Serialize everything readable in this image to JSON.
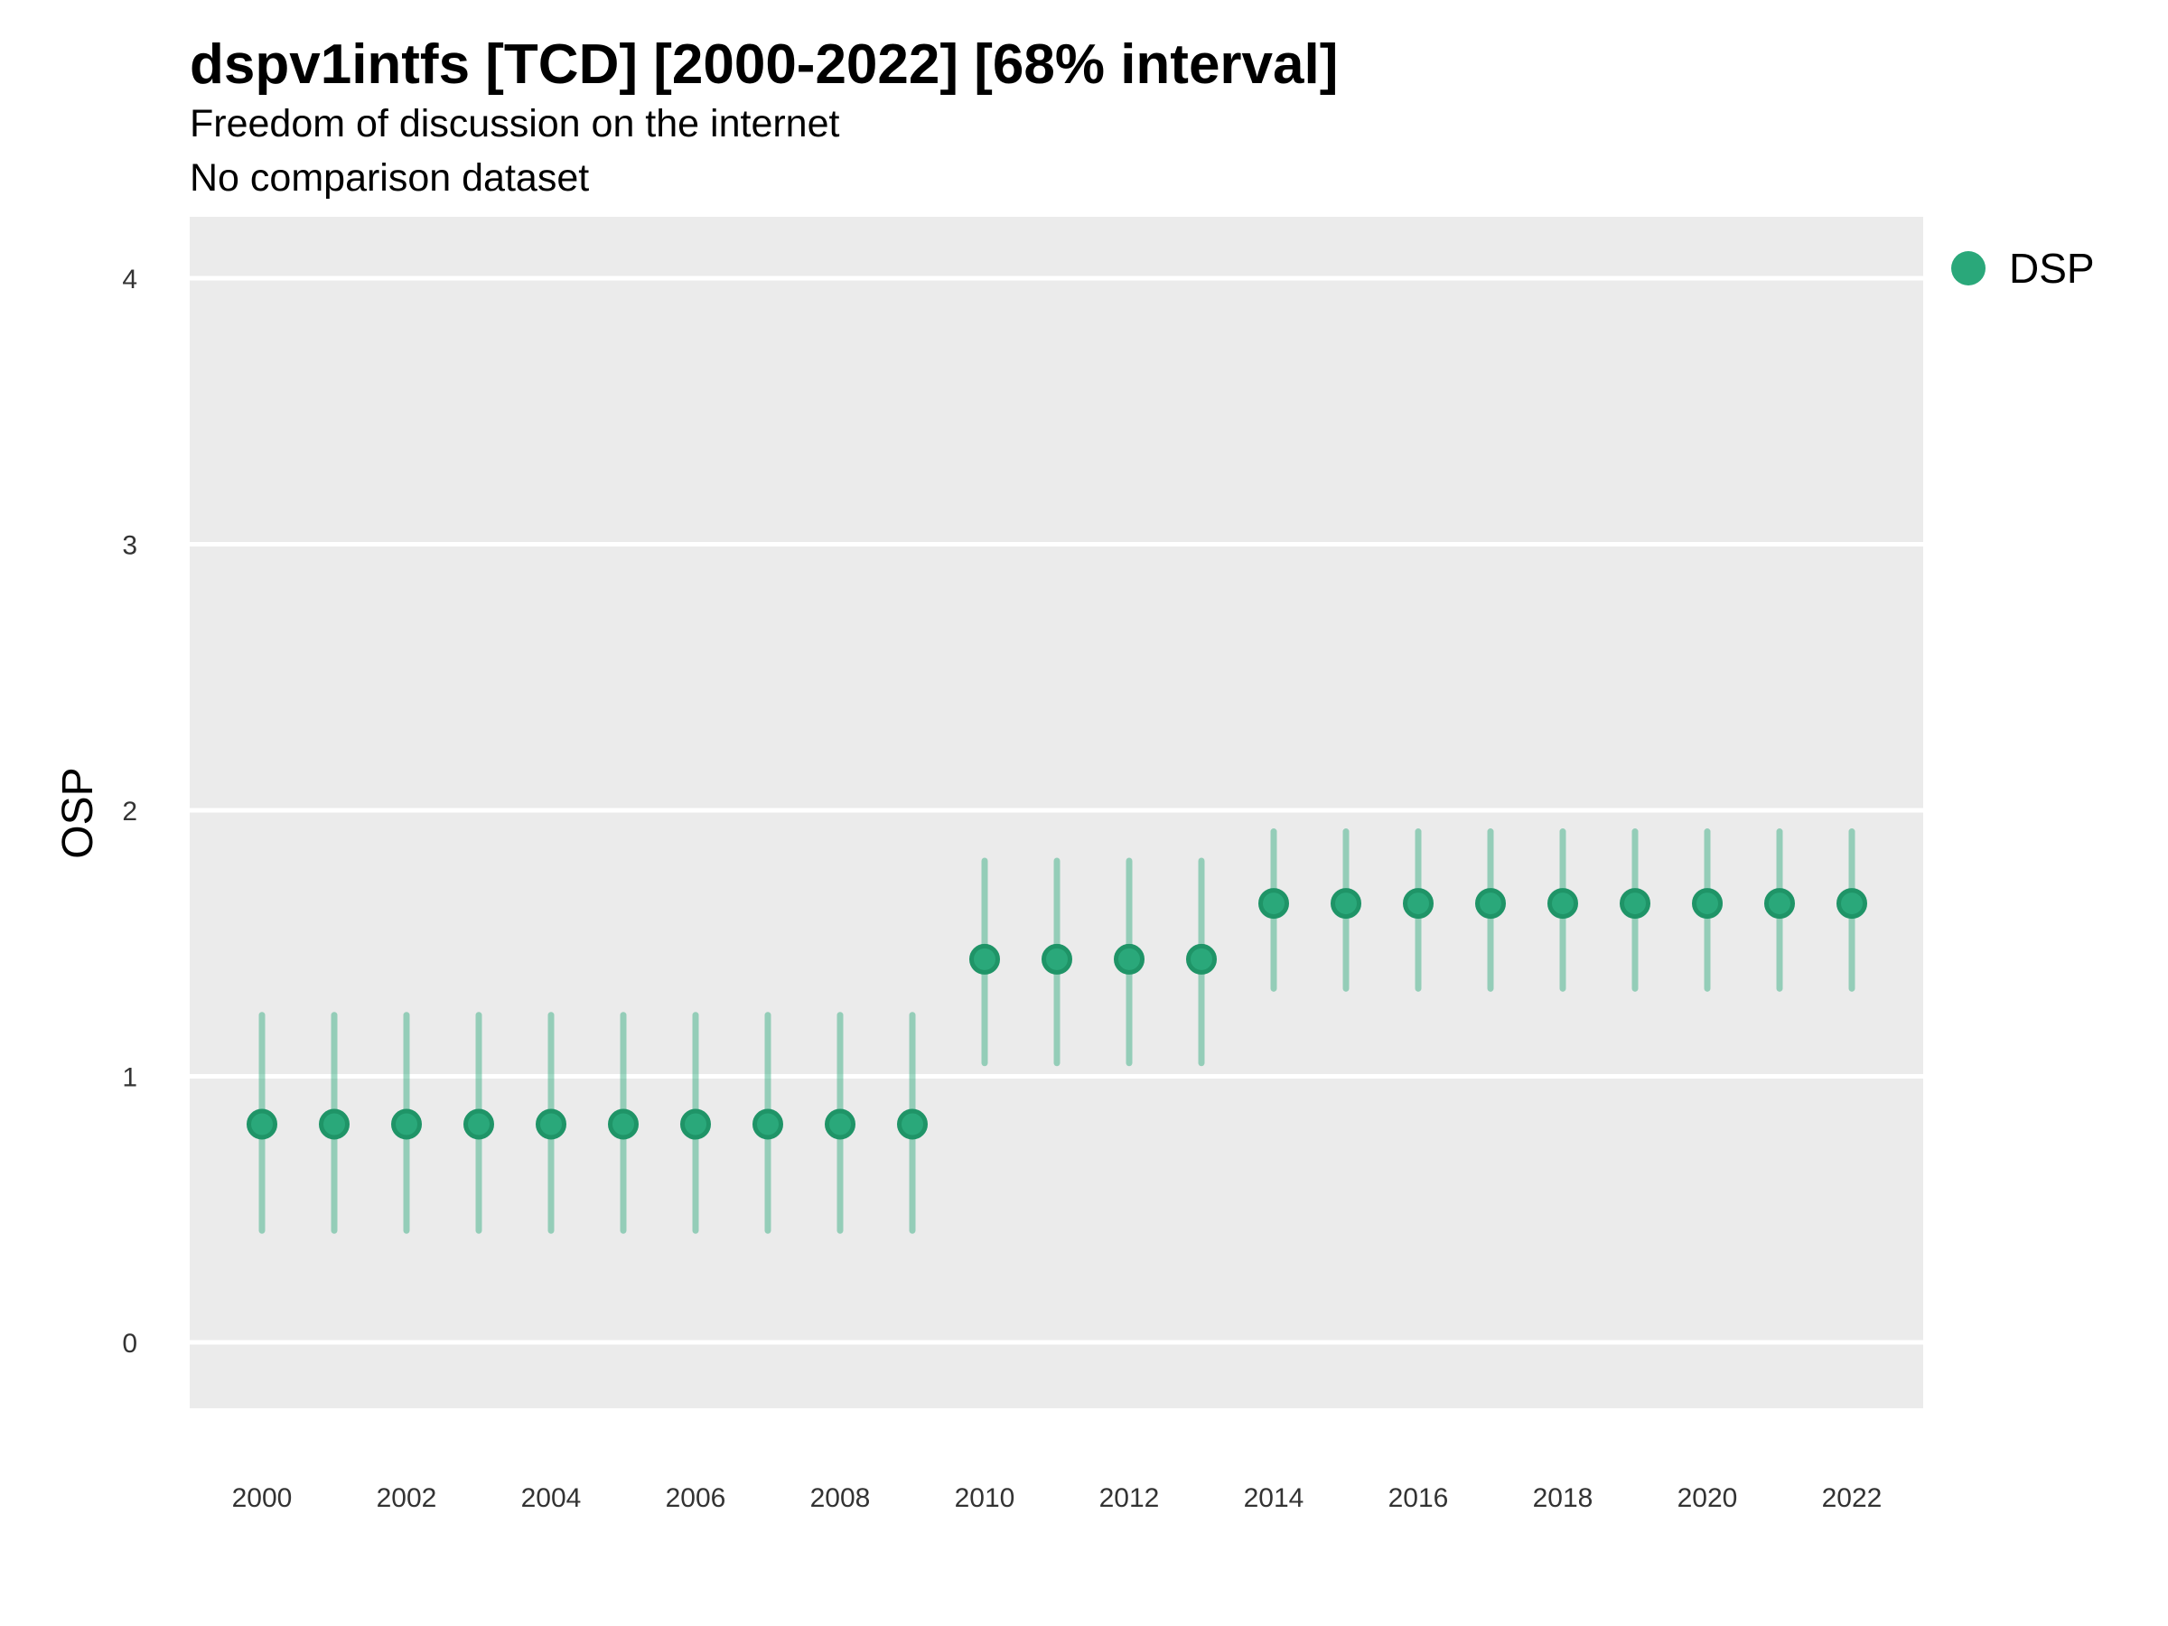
{
  "chart_data": {
    "type": "pointrange",
    "title": "dspv1intfs [TCD] [2000-2022] [68% interval]",
    "subtitle": [
      "Freedom of discussion on the internet",
      "No comparison dataset"
    ],
    "xlabel": "",
    "ylabel": "OSP",
    "ylim": [
      -0.25,
      4.25
    ],
    "yticks": [
      0,
      1,
      2,
      3,
      4
    ],
    "xticks": [
      2000,
      2002,
      2004,
      2006,
      2008,
      2010,
      2012,
      2014,
      2016,
      2018,
      2020,
      2022
    ],
    "grid": "horizontal-major-only",
    "panel_background": "#ebebeb",
    "gridline_color": "#ffffff",
    "axis_text_color": "#333333",
    "interval_level": "68%",
    "legend": {
      "position": "right-top",
      "entries": [
        {
          "label": "DSP",
          "color": "#2aa87a"
        }
      ]
    },
    "series": [
      {
        "name": "DSP",
        "point_color": "#2aa87a",
        "point_outline": "#1f9467",
        "interval_color": "#2aa87a",
        "interval_opacity": 0.45,
        "points": [
          {
            "x": 2000,
            "y": 0.82,
            "lo": 0.42,
            "hi": 1.23
          },
          {
            "x": 2001,
            "y": 0.82,
            "lo": 0.42,
            "hi": 1.23
          },
          {
            "x": 2002,
            "y": 0.82,
            "lo": 0.42,
            "hi": 1.23
          },
          {
            "x": 2003,
            "y": 0.82,
            "lo": 0.42,
            "hi": 1.23
          },
          {
            "x": 2004,
            "y": 0.82,
            "lo": 0.42,
            "hi": 1.23
          },
          {
            "x": 2005,
            "y": 0.82,
            "lo": 0.42,
            "hi": 1.23
          },
          {
            "x": 2006,
            "y": 0.82,
            "lo": 0.42,
            "hi": 1.23
          },
          {
            "x": 2007,
            "y": 0.82,
            "lo": 0.42,
            "hi": 1.23
          },
          {
            "x": 2008,
            "y": 0.82,
            "lo": 0.42,
            "hi": 1.23
          },
          {
            "x": 2009,
            "y": 0.82,
            "lo": 0.42,
            "hi": 1.23
          },
          {
            "x": 2010,
            "y": 1.44,
            "lo": 1.05,
            "hi": 1.81
          },
          {
            "x": 2011,
            "y": 1.44,
            "lo": 1.05,
            "hi": 1.81
          },
          {
            "x": 2012,
            "y": 1.44,
            "lo": 1.05,
            "hi": 1.81
          },
          {
            "x": 2013,
            "y": 1.44,
            "lo": 1.05,
            "hi": 1.81
          },
          {
            "x": 2014,
            "y": 1.65,
            "lo": 1.33,
            "hi": 1.92
          },
          {
            "x": 2015,
            "y": 1.65,
            "lo": 1.33,
            "hi": 1.92
          },
          {
            "x": 2016,
            "y": 1.65,
            "lo": 1.33,
            "hi": 1.92
          },
          {
            "x": 2017,
            "y": 1.65,
            "lo": 1.33,
            "hi": 1.92
          },
          {
            "x": 2018,
            "y": 1.65,
            "lo": 1.33,
            "hi": 1.92
          },
          {
            "x": 2019,
            "y": 1.65,
            "lo": 1.33,
            "hi": 1.92
          },
          {
            "x": 2020,
            "y": 1.65,
            "lo": 1.33,
            "hi": 1.92
          },
          {
            "x": 2021,
            "y": 1.65,
            "lo": 1.33,
            "hi": 1.92
          },
          {
            "x": 2022,
            "y": 1.65,
            "lo": 1.33,
            "hi": 1.92
          }
        ]
      }
    ]
  }
}
